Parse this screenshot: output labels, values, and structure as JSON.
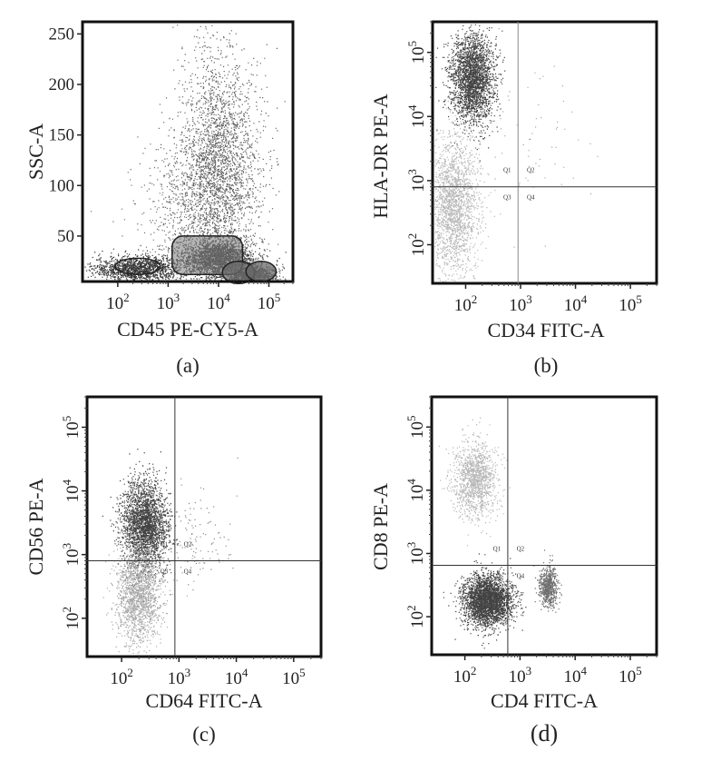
{
  "chart_data": [
    {
      "type": "scatter",
      "panel_caption": "(a)",
      "xlabel": "CD45 PE-CY5-A",
      "ylabel": "SSC-A",
      "x_scale": "log",
      "y_scale": "linear",
      "xlim": [
        20,
        300000
      ],
      "ylim": [
        5,
        262
      ],
      "x_ticks": [
        {
          "v": 100,
          "base": "10",
          "exp": "2"
        },
        {
          "v": 1000,
          "base": "10",
          "exp": "3"
        },
        {
          "v": 10000,
          "base": "10",
          "exp": "4"
        },
        {
          "v": 100000,
          "base": "10",
          "exp": "5"
        }
      ],
      "y_ticks": [
        {
          "v": 50,
          "label": "50"
        },
        {
          "v": 100,
          "label": "100"
        },
        {
          "v": 150,
          "label": "150"
        },
        {
          "v": 200,
          "label": "200"
        },
        {
          "v": 250,
          "label": "250"
        }
      ],
      "quadrants": null,
      "gates": [
        {
          "shape": "ellipse",
          "center": [
            250,
            20
          ],
          "radius_log_x": 0.45,
          "radius_y": 8
        },
        {
          "shape": "rounded_rect",
          "x": [
            1200,
            30000
          ],
          "y": [
            12,
            50
          ]
        },
        {
          "shape": "ellipse",
          "center": [
            25000,
            14
          ],
          "radius_log_x": 0.32,
          "radius_y": 11,
          "filled": true
        },
        {
          "shape": "ellipse",
          "center": [
            70000,
            15
          ],
          "radius_log_x": 0.3,
          "radius_y": 10,
          "filled": true
        }
      ],
      "populations": [
        {
          "n": 1400,
          "center": [
            250,
            18
          ],
          "spread": [
            0.45,
            6
          ],
          "shade": "#111111"
        },
        {
          "n": 2200,
          "center": [
            10000,
            28
          ],
          "spread": [
            0.35,
            9
          ],
          "shade": "#222222"
        },
        {
          "n": 1000,
          "center": [
            45000,
            12
          ],
          "spread": [
            0.25,
            5
          ],
          "shade": "#333333"
        },
        {
          "n": 2600,
          "center": [
            10000,
            120
          ],
          "spread": [
            0.4,
            55
          ],
          "shade": "#444444"
        },
        {
          "n": 900,
          "center": [
            3000,
            70
          ],
          "spread": [
            0.55,
            40
          ],
          "shade": "#555555"
        }
      ]
    },
    {
      "type": "scatter",
      "panel_caption": "(b)",
      "xlabel": "CD34 FITC-A",
      "ylabel": "HLA-DR PE-A",
      "x_scale": "log",
      "y_scale": "log",
      "xlim": [
        25,
        300000
      ],
      "ylim": [
        25,
        300000
      ],
      "x_ticks": [
        {
          "v": 100,
          "base": "10",
          "exp": "2"
        },
        {
          "v": 1000,
          "base": "10",
          "exp": "3"
        },
        {
          "v": 10000,
          "base": "10",
          "exp": "4"
        },
        {
          "v": 100000,
          "base": "10",
          "exp": "5"
        }
      ],
      "y_ticks": [
        {
          "v": 100,
          "base": "10",
          "exp": "2"
        },
        {
          "v": 1000,
          "base": "10",
          "exp": "3"
        },
        {
          "v": 10000,
          "base": "10",
          "exp": "4"
        },
        {
          "v": 100000,
          "base": "10",
          "exp": "5"
        }
      ],
      "quadrants": {
        "x": 900,
        "y": 800,
        "labels": [
          "Q1",
          "Q2",
          "Q3",
          "Q4"
        ]
      },
      "gates": [],
      "populations": [
        {
          "n": 2600,
          "center": [
            130,
            40000
          ],
          "spread": [
            0.2,
            0.35
          ],
          "shade": "#222222"
        },
        {
          "n": 2000,
          "center": [
            60,
            400
          ],
          "spread": [
            0.22,
            0.55
          ],
          "shade": "#aaaaaa"
        },
        {
          "n": 60,
          "center": [
            1500,
            5000
          ],
          "spread": [
            0.5,
            0.6
          ],
          "shade": "#999999"
        }
      ]
    },
    {
      "type": "scatter",
      "panel_caption": "(c)",
      "xlabel": "CD64 FITC-A",
      "ylabel": "CD56 PE-A",
      "x_scale": "log",
      "y_scale": "log",
      "xlim": [
        25,
        300000
      ],
      "ylim": [
        25,
        300000
      ],
      "x_ticks": [
        {
          "v": 100,
          "base": "10",
          "exp": "2"
        },
        {
          "v": 1000,
          "base": "10",
          "exp": "3"
        },
        {
          "v": 10000,
          "base": "10",
          "exp": "4"
        },
        {
          "v": 100000,
          "base": "10",
          "exp": "5"
        }
      ],
      "y_ticks": [
        {
          "v": 100,
          "base": "10",
          "exp": "2"
        },
        {
          "v": 1000,
          "base": "10",
          "exp": "3"
        },
        {
          "v": 10000,
          "base": "10",
          "exp": "4"
        },
        {
          "v": 100000,
          "base": "10",
          "exp": "5"
        }
      ],
      "quadrants": {
        "x": 850,
        "y": 800,
        "labels": [
          "Q1",
          "Q2",
          "Q3",
          "Q4"
        ]
      },
      "gates": [],
      "populations": [
        {
          "n": 2600,
          "center": [
            250,
            3000
          ],
          "spread": [
            0.2,
            0.35
          ],
          "shade": "#222222"
        },
        {
          "n": 1700,
          "center": [
            200,
            250
          ],
          "spread": [
            0.2,
            0.4
          ],
          "shade": "#999999"
        },
        {
          "n": 120,
          "center": [
            2000,
            1500
          ],
          "spread": [
            0.3,
            0.4
          ],
          "shade": "#777777"
        }
      ]
    },
    {
      "type": "scatter",
      "panel_caption": "(d)",
      "xlabel": "CD4 FITC-A",
      "ylabel": "CD8 PE-A",
      "x_scale": "log",
      "y_scale": "log",
      "xlim": [
        25,
        300000
      ],
      "ylim": [
        25,
        300000
      ],
      "x_ticks": [
        {
          "v": 100,
          "base": "10",
          "exp": "2"
        },
        {
          "v": 1000,
          "base": "10",
          "exp": "3"
        },
        {
          "v": 10000,
          "base": "10",
          "exp": "4"
        },
        {
          "v": 100000,
          "base": "10",
          "exp": "5"
        }
      ],
      "y_ticks": [
        {
          "v": 100,
          "base": "10",
          "exp": "2"
        },
        {
          "v": 1000,
          "base": "10",
          "exp": "3"
        },
        {
          "v": 10000,
          "base": "10",
          "exp": "4"
        },
        {
          "v": 100000,
          "base": "10",
          "exp": "5"
        }
      ],
      "quadrants": {
        "x": 600,
        "y": 650,
        "labels": [
          "Q1",
          "Q2",
          "Q3",
          "Q4"
        ]
      },
      "gates": [],
      "populations": [
        {
          "n": 3000,
          "center": [
            250,
            180
          ],
          "spread": [
            0.22,
            0.2
          ],
          "shade": "#222222"
        },
        {
          "n": 1300,
          "center": [
            150,
            15000
          ],
          "spread": [
            0.2,
            0.3
          ],
          "shade": "#aaaaaa"
        },
        {
          "n": 700,
          "center": [
            3200,
            300
          ],
          "spread": [
            0.08,
            0.15
          ],
          "shade": "#555555"
        }
      ]
    }
  ]
}
